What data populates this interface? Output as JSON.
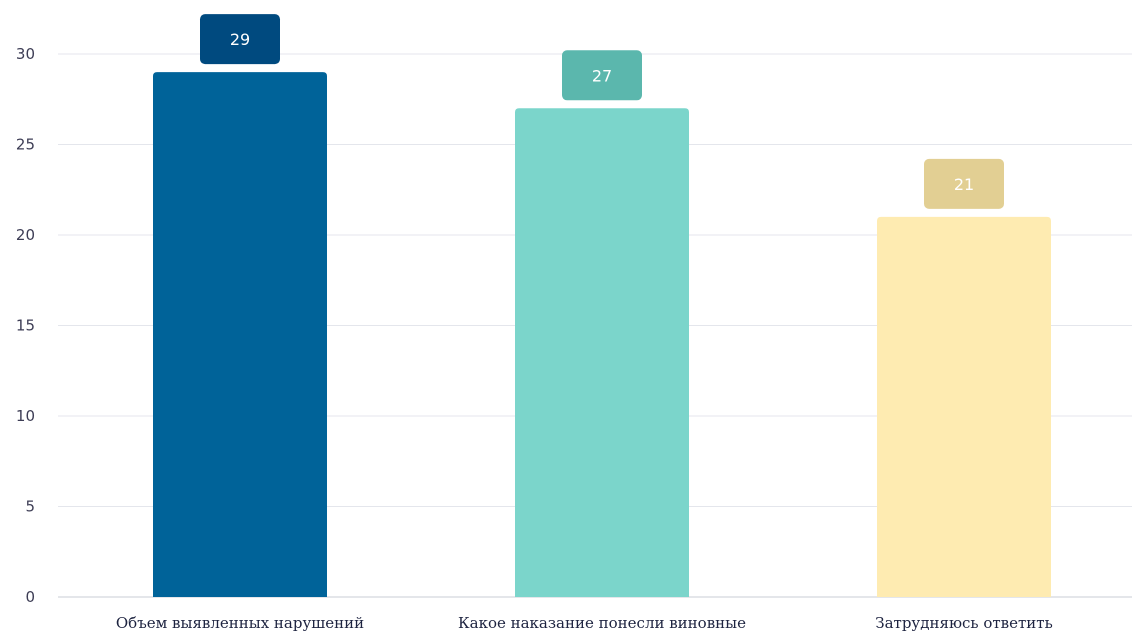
{
  "chart_data": {
    "type": "bar",
    "categories": [
      "Объем выявленных нарушений",
      "Какое наказание понесли виновные",
      "Затрудняюсь ответить"
    ],
    "values": [
      29,
      27,
      21
    ],
    "ylim": [
      0,
      30
    ],
    "yticks": [
      0,
      5,
      10,
      15,
      20,
      25,
      30
    ],
    "ytick_labels": [
      "0",
      "5",
      "10",
      "15",
      "20",
      "25",
      "30"
    ],
    "value_labels": [
      "29",
      "27",
      "21"
    ],
    "grid": true,
    "legend": "none",
    "colors": {
      "bars": [
        "#006399",
        "#7bd5cb",
        "#feebb1"
      ],
      "value_badges": [
        "#004a7f",
        "#5bb7ad",
        "#e2cf93"
      ]
    }
  }
}
